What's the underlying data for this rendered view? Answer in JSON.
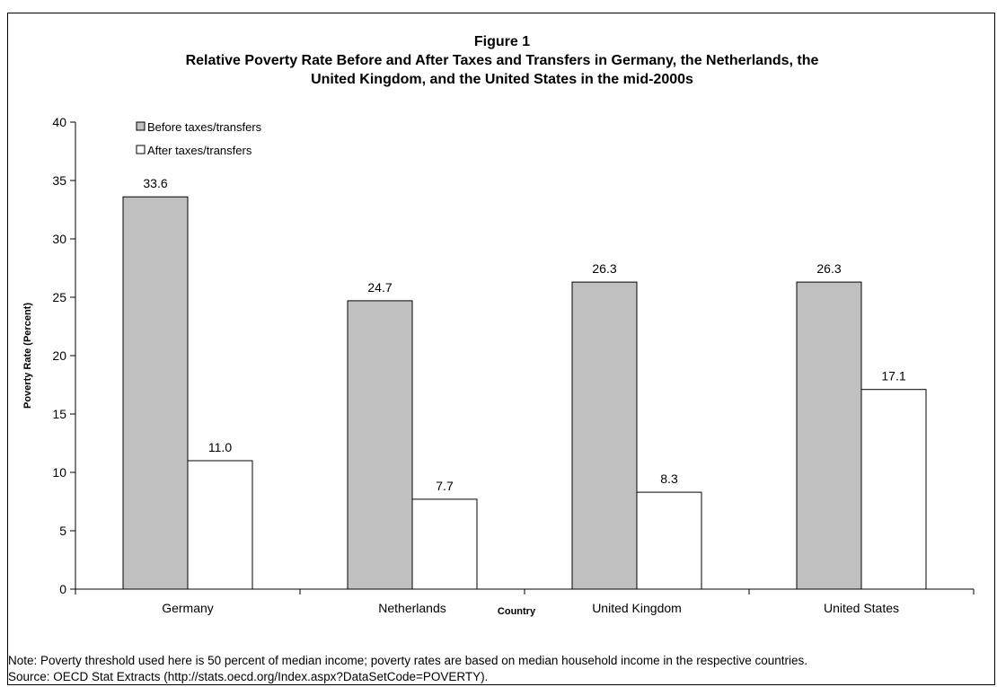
{
  "chart_data": {
    "type": "bar",
    "title": "Figure 1",
    "subtitle": [
      "Relative Poverty Rate Before and After Taxes and Transfers in Germany, the Netherlands, the",
      "United Kingdom, and the United States in the mid-2000s"
    ],
    "xlabel": "Country",
    "ylabel": "Poverty Rate (Percent)",
    "ylim": [
      0,
      40
    ],
    "yticks": [
      0,
      5,
      10,
      15,
      20,
      25,
      30,
      35,
      40
    ],
    "categories": [
      "Germany",
      "Netherlands",
      "United Kingdom",
      "United States"
    ],
    "series": [
      {
        "name": "Before taxes/transfers",
        "values": [
          33.6,
          24.7,
          26.3,
          26.3
        ],
        "labels": [
          "33.6",
          "24.7",
          "26.3",
          "26.3"
        ],
        "color": "#c0c0c0"
      },
      {
        "name": "After taxes/transfers",
        "values": [
          11.0,
          7.7,
          8.3,
          17.1
        ],
        "labels": [
          "11.0",
          "7.7",
          "8.3",
          "17.1"
        ],
        "color": "#ffffff"
      }
    ],
    "legend_position": "top-left",
    "grid": false
  },
  "notes": [
    "Note: Poverty threshold used here is 50 percent of median income; poverty rates are based on median household income in the respective countries.",
    "Source: OECD Stat Extracts (http://stats.oecd.org/Index.aspx?DataSetCode=POVERTY)."
  ]
}
